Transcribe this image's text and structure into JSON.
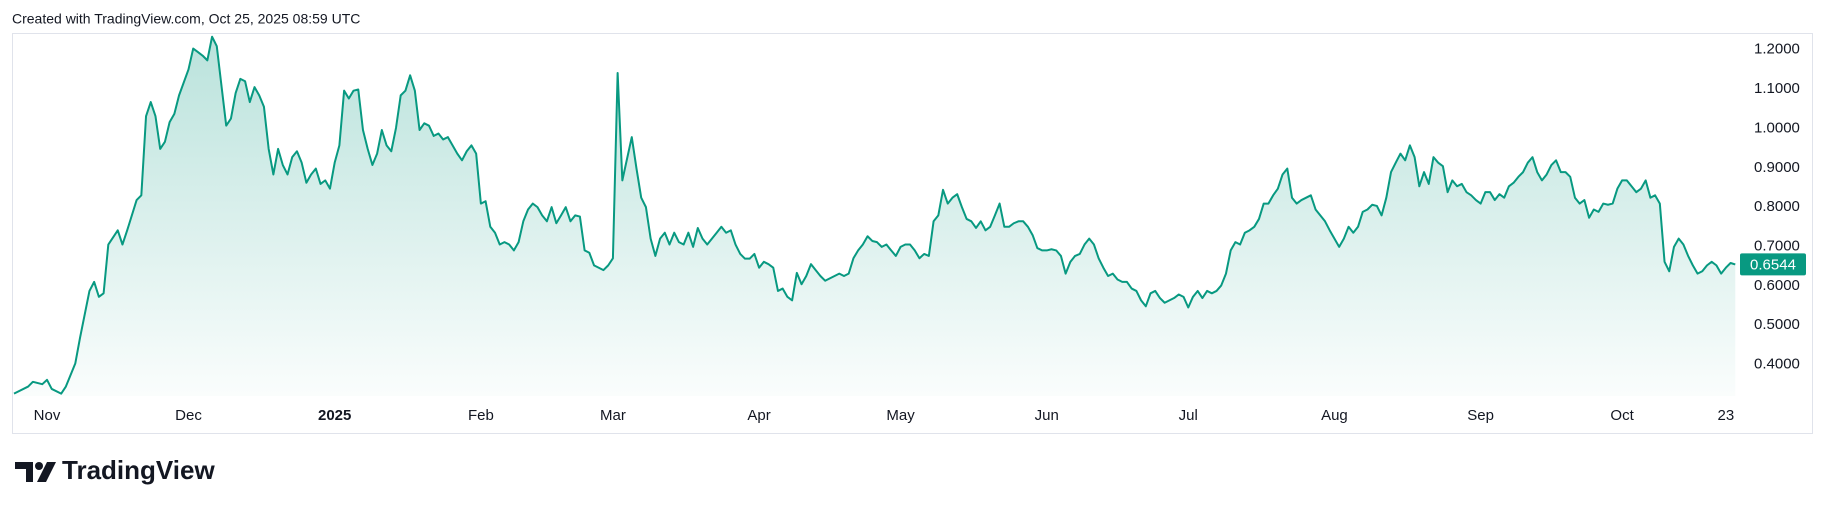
{
  "header": {
    "text": "Created with TradingView.com, Oct 25, 2025 08:59 UTC"
  },
  "footer": {
    "brand": "TradingView"
  },
  "chart_data": {
    "type": "area",
    "color": "#089981",
    "xlim": [
      0,
      366
    ],
    "xticks": [
      {
        "value": 7,
        "label": "Nov"
      },
      {
        "value": 37,
        "label": "Dec"
      },
      {
        "value": 68,
        "label": "2025"
      },
      {
        "value": 99,
        "label": "Feb"
      },
      {
        "value": 127,
        "label": "Mar"
      },
      {
        "value": 158,
        "label": "Apr"
      },
      {
        "value": 188,
        "label": "May"
      },
      {
        "value": 219,
        "label": "Jun"
      },
      {
        "value": 249,
        "label": "Jul"
      },
      {
        "value": 280,
        "label": "Aug"
      },
      {
        "value": 311,
        "label": "Sep"
      },
      {
        "value": 341,
        "label": "Oct"
      },
      {
        "value": 363,
        "label": "23"
      }
    ],
    "ylim": [
      0.32,
      1.24
    ],
    "yticks": [
      {
        "value": 0.4,
        "label": "0.4000"
      },
      {
        "value": 0.5,
        "label": "0.5000"
      },
      {
        "value": 0.6,
        "label": "0.6000"
      },
      {
        "value": 0.7,
        "label": "0.7000"
      },
      {
        "value": 0.8,
        "label": "0.8000"
      },
      {
        "value": 0.9,
        "label": "0.9000"
      },
      {
        "value": 1.0,
        "label": "1.0000"
      },
      {
        "value": 1.1,
        "label": "1.1000"
      },
      {
        "value": 1.2,
        "label": "1.2000"
      }
    ],
    "x": [
      0,
      3,
      4,
      6,
      7,
      8,
      10,
      11,
      13,
      14,
      16,
      17,
      18,
      19,
      20,
      22,
      23,
      24,
      26,
      27,
      28,
      29,
      30,
      31,
      32,
      33,
      34,
      35,
      37,
      38,
      39,
      40,
      41,
      42,
      43,
      45,
      46,
      47,
      48,
      49,
      50,
      51,
      52,
      53,
      54,
      55,
      56,
      57,
      58,
      59,
      60,
      61,
      62,
      63,
      64,
      65,
      66,
      67,
      68,
      69,
      70,
      71,
      72,
      73,
      74,
      75,
      76,
      77,
      78,
      79,
      80,
      81,
      82,
      83,
      84,
      85,
      86,
      87,
      88,
      89,
      90,
      91,
      92,
      93,
      94,
      95,
      96,
      97,
      98,
      99,
      100,
      101,
      102,
      103,
      104,
      105,
      106,
      107,
      108,
      109,
      110,
      111,
      112,
      113,
      114,
      115,
      116,
      117,
      118,
      119,
      120,
      121,
      122,
      123,
      124,
      125,
      126,
      127,
      128,
      129,
      131,
      132,
      133,
      134,
      135,
      136,
      137,
      138,
      139,
      140,
      141,
      142,
      143,
      144,
      145,
      146,
      147,
      148,
      149,
      150,
      151,
      152,
      153,
      154,
      155,
      156,
      157,
      158,
      159,
      160,
      161,
      162,
      163,
      164,
      165,
      166,
      167,
      168,
      169,
      170,
      171,
      172,
      173,
      174,
      175,
      176,
      177,
      178,
      179,
      180,
      181,
      182,
      183,
      184,
      185,
      186,
      187,
      188,
      189,
      190,
      191,
      192,
      193,
      194,
      195,
      196,
      197,
      198,
      199,
      200,
      201,
      202,
      203,
      204,
      205,
      206,
      207,
      208,
      209,
      210,
      211,
      212,
      213,
      214,
      215,
      216,
      217,
      218,
      219,
      220,
      221,
      222,
      223,
      224,
      225,
      226,
      227,
      228,
      229,
      230,
      231,
      232,
      233,
      234,
      235,
      236,
      237,
      238,
      239,
      240,
      241,
      242,
      243,
      244,
      245,
      246,
      247,
      248,
      249,
      250,
      251,
      252,
      253,
      254,
      255,
      256,
      257,
      258,
      259,
      260,
      261,
      262,
      263,
      264,
      265,
      266,
      267,
      268,
      269,
      270,
      271,
      272,
      273,
      274,
      275,
      276,
      277,
      278,
      279,
      280,
      281,
      282,
      283,
      284,
      285,
      286,
      287,
      288,
      289,
      290,
      291,
      292,
      293,
      294,
      295,
      296,
      297,
      298,
      299,
      300,
      301,
      302,
      303,
      304,
      305,
      306,
      307,
      308,
      309,
      310,
      311,
      312,
      313,
      314,
      315,
      316,
      317,
      318,
      319,
      320,
      321,
      322,
      323,
      324,
      325,
      326,
      327,
      328,
      329,
      330,
      331,
      332,
      333,
      334,
      335,
      336,
      337,
      338,
      339,
      340,
      341,
      342,
      343,
      344,
      345,
      346,
      347,
      348,
      349,
      350,
      351,
      352,
      353,
      354,
      355,
      356,
      357,
      358,
      359,
      360,
      361,
      362,
      363,
      364,
      365
    ],
    "values": [
      0.326,
      0.344,
      0.356,
      0.35,
      0.361,
      0.338,
      0.326,
      0.344,
      0.403,
      0.468,
      0.587,
      0.61,
      0.572,
      0.581,
      0.705,
      0.741,
      0.705,
      0.741,
      0.818,
      0.83,
      1.031,
      1.067,
      1.031,
      0.948,
      0.966,
      1.016,
      1.037,
      1.084,
      1.15,
      1.203,
      1.194,
      1.185,
      1.173,
      1.233,
      1.209,
      1.007,
      1.025,
      1.09,
      1.126,
      1.12,
      1.067,
      1.105,
      1.084,
      1.055,
      0.948,
      0.883,
      0.948,
      0.907,
      0.883,
      0.927,
      0.942,
      0.913,
      0.862,
      0.883,
      0.898,
      0.859,
      0.868,
      0.847,
      0.913,
      0.957,
      1.096,
      1.076,
      1.096,
      1.099,
      0.996,
      0.948,
      0.907,
      0.936,
      0.996,
      0.957,
      0.942,
      1.001,
      1.084,
      1.096,
      1.135,
      1.096,
      0.996,
      1.013,
      1.007,
      0.981,
      0.987,
      0.972,
      0.978,
      0.957,
      0.936,
      0.919,
      0.942,
      0.957,
      0.936,
      0.809,
      0.815,
      0.75,
      0.735,
      0.705,
      0.711,
      0.705,
      0.69,
      0.711,
      0.764,
      0.794,
      0.809,
      0.8,
      0.779,
      0.764,
      0.8,
      0.759,
      0.779,
      0.8,
      0.764,
      0.779,
      0.776,
      0.69,
      0.684,
      0.652,
      0.646,
      0.64,
      0.652,
      0.67,
      1.141,
      0.868,
      0.978,
      0.898,
      0.824,
      0.8,
      0.72,
      0.676,
      0.72,
      0.735,
      0.705,
      0.735,
      0.711,
      0.705,
      0.735,
      0.699,
      0.747,
      0.72,
      0.705,
      0.72,
      0.735,
      0.75,
      0.735,
      0.741,
      0.705,
      0.681,
      0.669,
      0.669,
      0.681,
      0.646,
      0.661,
      0.655,
      0.646,
      0.587,
      0.593,
      0.572,
      0.563,
      0.633,
      0.604,
      0.625,
      0.655,
      0.64,
      0.625,
      0.613,
      0.619,
      0.625,
      0.631,
      0.625,
      0.631,
      0.67,
      0.69,
      0.705,
      0.726,
      0.714,
      0.711,
      0.699,
      0.705,
      0.69,
      0.676,
      0.699,
      0.705,
      0.705,
      0.69,
      0.67,
      0.681,
      0.676,
      0.764,
      0.779,
      0.844,
      0.809,
      0.824,
      0.833,
      0.8,
      0.77,
      0.764,
      0.747,
      0.764,
      0.741,
      0.75,
      0.779,
      0.809,
      0.75,
      0.75,
      0.759,
      0.764,
      0.764,
      0.75,
      0.729,
      0.696,
      0.69,
      0.69,
      0.693,
      0.69,
      0.676,
      0.631,
      0.661,
      0.676,
      0.681,
      0.705,
      0.72,
      0.705,
      0.67,
      0.646,
      0.625,
      0.631,
      0.616,
      0.61,
      0.61,
      0.593,
      0.587,
      0.563,
      0.548,
      0.581,
      0.587,
      0.569,
      0.557,
      0.563,
      0.569,
      0.578,
      0.572,
      0.545,
      0.572,
      0.587,
      0.569,
      0.587,
      0.581,
      0.587,
      0.601,
      0.631,
      0.69,
      0.711,
      0.705,
      0.735,
      0.741,
      0.75,
      0.77,
      0.809,
      0.809,
      0.83,
      0.847,
      0.883,
      0.898,
      0.824,
      0.809,
      0.818,
      0.824,
      0.83,
      0.794,
      0.779,
      0.764,
      0.741,
      0.72,
      0.699,
      0.72,
      0.75,
      0.735,
      0.75,
      0.788,
      0.794,
      0.806,
      0.803,
      0.779,
      0.824,
      0.889,
      0.913,
      0.936,
      0.919,
      0.957,
      0.927,
      0.853,
      0.889,
      0.859,
      0.927,
      0.913,
      0.904,
      0.838,
      0.868,
      0.853,
      0.859,
      0.838,
      0.83,
      0.818,
      0.809,
      0.838,
      0.838,
      0.818,
      0.833,
      0.824,
      0.853,
      0.862,
      0.877,
      0.889,
      0.913,
      0.927,
      0.889,
      0.868,
      0.883,
      0.907,
      0.919,
      0.889,
      0.889,
      0.877,
      0.824,
      0.809,
      0.818,
      0.773,
      0.794,
      0.788,
      0.809,
      0.806,
      0.809,
      0.847,
      0.868,
      0.868,
      0.853,
      0.838,
      0.847,
      0.868,
      0.824,
      0.83,
      0.809,
      0.661,
      0.637,
      0.699,
      0.72,
      0.705,
      0.676,
      0.652,
      0.631,
      0.637,
      0.652,
      0.661,
      0.652,
      0.631,
      0.646,
      0.658,
      0.6544
    ]
  }
}
